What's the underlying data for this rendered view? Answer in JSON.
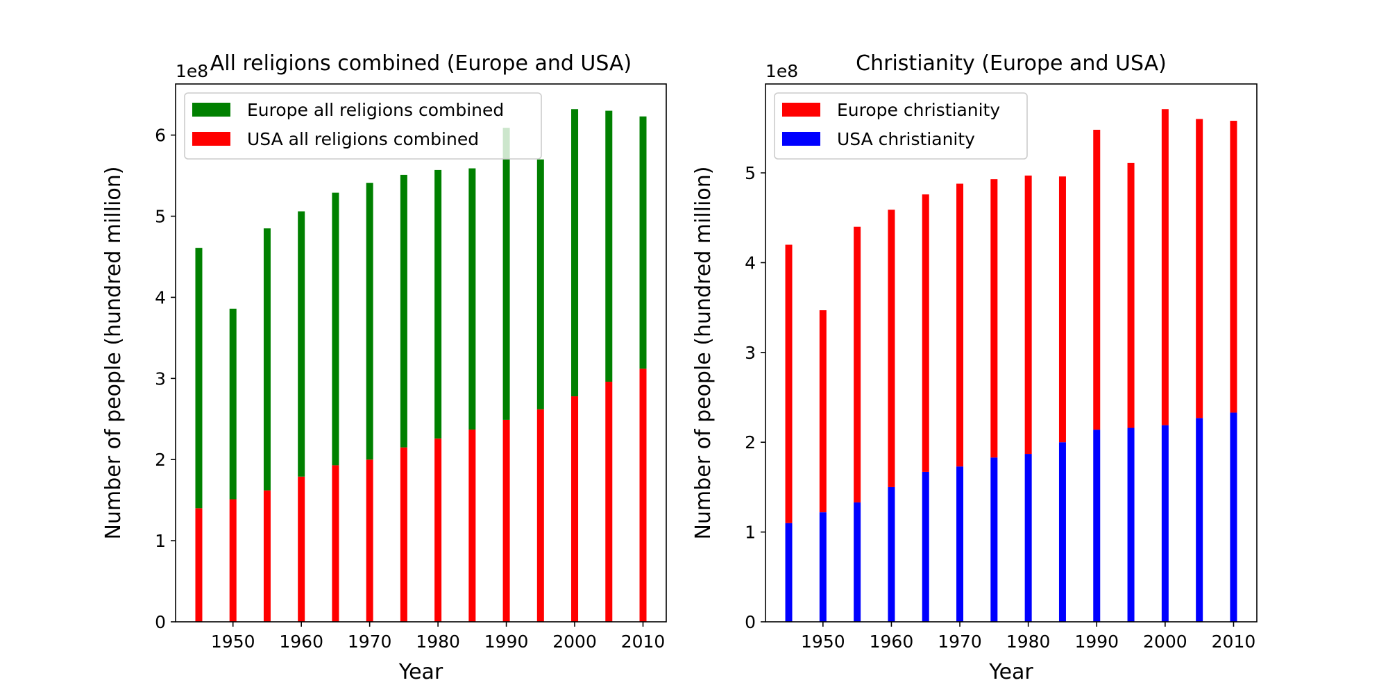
{
  "chart_data": [
    {
      "type": "bar",
      "stacked": true,
      "title": "All religions combined (Europe and USA)",
      "xlabel": "Year",
      "ylabel": "Number of people (hundred million)",
      "offset_text": "1e8",
      "x": [
        1945,
        1950,
        1955,
        1960,
        1965,
        1970,
        1975,
        1980,
        1985,
        1990,
        1995,
        2000,
        2005,
        2010
      ],
      "xticks": [
        1950,
        1960,
        1970,
        1980,
        1990,
        2000,
        2010
      ],
      "yticks": [
        0,
        1,
        2,
        3,
        4,
        5,
        6
      ],
      "xlim": [
        1941.6,
        2013.4
      ],
      "ylim": [
        0,
        6.63
      ],
      "grid": false,
      "legend_position": "upper-left",
      "series": [
        {
          "name": "USA all religions combined",
          "role": "bottom",
          "color": "#ff0000",
          "values": [
            1.4,
            1.51,
            1.62,
            1.79,
            1.93,
            2.0,
            2.15,
            2.26,
            2.37,
            2.49,
            2.62,
            2.78,
            2.96,
            3.12
          ]
        },
        {
          "name": "Europe all religions combined",
          "role": "stacked-top",
          "color": "#008000",
          "values": [
            3.21,
            2.35,
            3.23,
            3.27,
            3.36,
            3.41,
            3.36,
            3.31,
            3.22,
            3.6,
            3.08,
            3.54,
            3.34,
            3.11
          ]
        }
      ],
      "legend": [
        {
          "label": "Europe all religions combined",
          "color": "#008000"
        },
        {
          "label": "USA all religions combined",
          "color": "#ff0000"
        }
      ]
    },
    {
      "type": "bar",
      "stacked": true,
      "title": "Christianity (Europe and USA)",
      "xlabel": "Year",
      "ylabel": "Number of people (hundred million)",
      "offset_text": "1e8",
      "x": [
        1945,
        1950,
        1955,
        1960,
        1965,
        1970,
        1975,
        1980,
        1985,
        1990,
        1995,
        2000,
        2005,
        2010
      ],
      "xticks": [
        1950,
        1960,
        1970,
        1980,
        1990,
        2000,
        2010
      ],
      "yticks": [
        0,
        1,
        2,
        3,
        4,
        5
      ],
      "xlim": [
        1941.6,
        2013.4
      ],
      "ylim": [
        0,
        5.99
      ],
      "grid": false,
      "legend_position": "upper-left",
      "series": [
        {
          "name": "USA christianity",
          "role": "bottom",
          "color": "#0000ff",
          "values": [
            1.1,
            1.22,
            1.33,
            1.5,
            1.67,
            1.73,
            1.83,
            1.87,
            2.0,
            2.14,
            2.16,
            2.19,
            2.27,
            2.33
          ]
        },
        {
          "name": "Europe christianity",
          "role": "stacked-top",
          "color": "#ff0000",
          "values": [
            3.1,
            2.25,
            3.07,
            3.09,
            3.09,
            3.15,
            3.1,
            3.1,
            2.96,
            3.34,
            2.95,
            3.52,
            3.33,
            3.25
          ]
        }
      ],
      "legend": [
        {
          "label": "Europe christianity",
          "color": "#ff0000"
        },
        {
          "label": "USA christianity",
          "color": "#0000ff"
        }
      ]
    }
  ]
}
